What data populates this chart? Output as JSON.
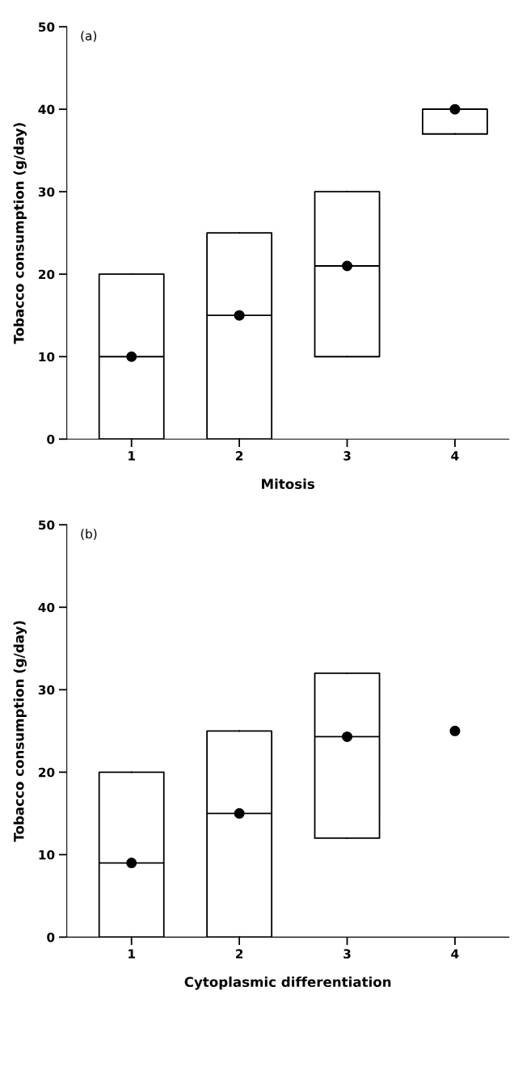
{
  "chart_data": [
    {
      "type": "box",
      "annotations": [
        "(a)"
      ],
      "xlabel": "Mitosis",
      "ylabel": "Tobacco consumption (g/day)",
      "categories": [
        "1",
        "2",
        "3",
        "4"
      ],
      "boxes": [
        {
          "low": 0,
          "q1": 0,
          "median": 10,
          "q3": 20,
          "high": 20
        },
        {
          "low": 0,
          "q1": 0,
          "median": 15,
          "q3": 25,
          "high": 25
        },
        {
          "low": 10,
          "q1": 10,
          "median": 21,
          "q3": 30,
          "high": 30
        },
        {
          "low": 37,
          "q1": 37,
          "median": 40,
          "q3": 40,
          "high": 40
        }
      ],
      "series": [
        {
          "type": "scatter",
          "color": "#000000",
          "values": [
            10,
            15,
            21,
            40
          ]
        }
      ],
      "marker": "circle",
      "ylim": [
        0,
        50
      ],
      "yticks": [
        0,
        10,
        20,
        30,
        40,
        50
      ],
      "grid": false,
      "legend": false
    },
    {
      "type": "box",
      "annotations": [
        "(b)"
      ],
      "xlabel": "Cytoplasmic differentiation",
      "ylabel": "Tobacco consumption (g/day)",
      "categories": [
        "1",
        "2",
        "3",
        "4"
      ],
      "boxes": [
        {
          "low": 0,
          "q1": 0,
          "median": 9,
          "q3": 20,
          "high": 20
        },
        {
          "low": 0,
          "q1": 0,
          "median": 15,
          "q3": 25,
          "high": 25
        },
        {
          "low": 12,
          "q1": 12,
          "median": 24.3,
          "q3": 32,
          "high": 32
        },
        null
      ],
      "series": [
        {
          "type": "scatter",
          "color": "#000000",
          "values": [
            9,
            15,
            24.3,
            25
          ]
        }
      ],
      "marker": "circle",
      "ylim": [
        0,
        50
      ],
      "yticks": [
        0,
        10,
        20,
        30,
        40,
        50
      ],
      "grid": false,
      "legend": false
    }
  ]
}
